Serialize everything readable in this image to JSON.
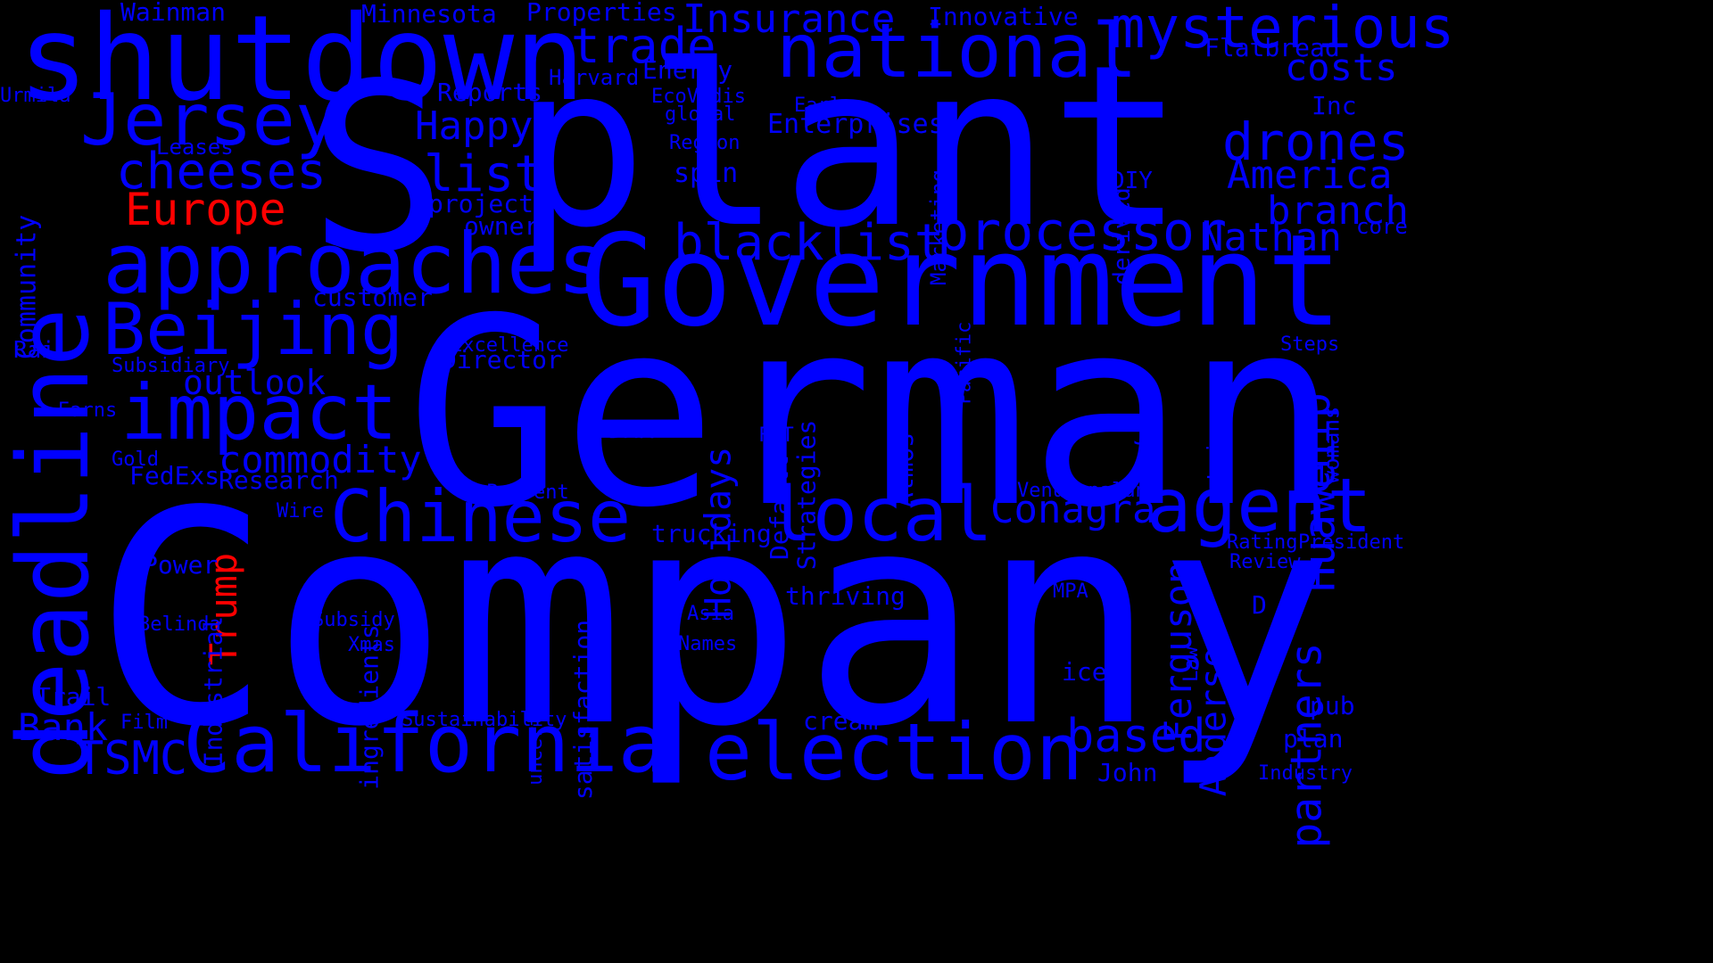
{
  "colors": {
    "background": "#000000",
    "primary": "#0000FF",
    "highlight": "#FF0000"
  },
  "words": [
    {
      "text": "Company",
      "orientation": "horizontal",
      "color": "primary"
    },
    {
      "text": "German",
      "orientation": "horizontal",
      "color": "primary"
    },
    {
      "text": "plant",
      "orientation": "horizontal",
      "color": "primary"
    },
    {
      "text": "S",
      "orientation": "horizontal",
      "color": "primary"
    },
    {
      "text": "Government",
      "orientation": "horizontal",
      "color": "primary"
    },
    {
      "text": "shutdown",
      "orientation": "horizontal",
      "color": "primary"
    },
    {
      "text": "deadline",
      "orientation": "vertical",
      "color": "primary"
    },
    {
      "text": "national",
      "orientation": "horizontal",
      "color": "primary"
    },
    {
      "text": "approaches",
      "orientation": "horizontal",
      "color": "primary"
    },
    {
      "text": "California",
      "orientation": "horizontal",
      "color": "primary"
    },
    {
      "text": "election",
      "orientation": "horizontal",
      "color": "primary"
    },
    {
      "text": "Chinese",
      "orientation": "horizontal",
      "color": "primary"
    },
    {
      "text": "impact",
      "orientation": "horizontal",
      "color": "primary"
    },
    {
      "text": "local",
      "orientation": "horizontal",
      "color": "primary"
    },
    {
      "text": "agent",
      "orientation": "horizontal",
      "color": "primary"
    },
    {
      "text": "Jersey",
      "orientation": "horizontal",
      "color": "primary"
    },
    {
      "text": "Beijing",
      "orientation": "horizontal",
      "color": "primary"
    },
    {
      "text": "mysterious",
      "orientation": "horizontal",
      "color": "primary"
    },
    {
      "text": "processor",
      "orientation": "horizontal",
      "color": "primary"
    },
    {
      "text": "blacklist",
      "orientation": "horizontal",
      "color": "primary"
    },
    {
      "text": "trade",
      "orientation": "horizontal",
      "color": "primary"
    },
    {
      "text": "drones",
      "orientation": "horizontal",
      "color": "primary"
    },
    {
      "text": "cheeses",
      "orientation": "horizontal",
      "color": "primary"
    },
    {
      "text": "list",
      "orientation": "horizontal",
      "color": "primary"
    },
    {
      "text": "partners",
      "orientation": "vertical",
      "color": "primary"
    },
    {
      "text": "Huawei",
      "orientation": "vertical",
      "color": "primary"
    },
    {
      "text": "chip",
      "orientation": "vertical",
      "color": "primary"
    },
    {
      "text": "based",
      "orientation": "horizontal",
      "color": "primary"
    },
    {
      "text": "Ferguson",
      "orientation": "vertical",
      "color": "primary"
    },
    {
      "text": "Anderson",
      "orientation": "vertical",
      "color": "primary"
    },
    {
      "text": "Conagra",
      "orientation": "horizontal",
      "color": "primary"
    },
    {
      "text": "TSMC",
      "orientation": "horizontal",
      "color": "primary"
    },
    {
      "text": "Insurance",
      "orientation": "horizontal",
      "color": "primary"
    },
    {
      "text": "Europe",
      "orientation": "horizontal",
      "color": "highlight"
    },
    {
      "text": "Trump",
      "orientation": "vertical",
      "color": "highlight"
    },
    {
      "text": "America",
      "orientation": "horizontal",
      "color": "primary"
    },
    {
      "text": "branch",
      "orientation": "horizontal",
      "color": "primary"
    },
    {
      "text": "Nathan",
      "orientation": "horizontal",
      "color": "primary"
    },
    {
      "text": "costs",
      "orientation": "horizontal",
      "color": "primary"
    },
    {
      "text": "outlook",
      "orientation": "horizontal",
      "color": "primary"
    },
    {
      "text": "commodity",
      "orientation": "horizontal",
      "color": "primary"
    },
    {
      "text": "Happy",
      "orientation": "horizontal",
      "color": "primary"
    },
    {
      "text": "Holidays",
      "orientation": "vertical",
      "color": "primary"
    },
    {
      "text": "Community",
      "orientation": "vertical",
      "color": "primary"
    },
    {
      "text": "Bank",
      "orientation": "horizontal",
      "color": "primary"
    },
    {
      "text": "Research",
      "orientation": "horizontal",
      "color": "primary"
    },
    {
      "text": "FedExs",
      "orientation": "horizontal",
      "color": "primary"
    },
    {
      "text": "Director",
      "orientation": "horizontal",
      "color": "primary"
    },
    {
      "text": "customer",
      "orientation": "horizontal",
      "color": "primary"
    },
    {
      "text": "project",
      "orientation": "horizontal",
      "color": "primary"
    },
    {
      "text": "owner",
      "orientation": "horizontal",
      "color": "primary"
    },
    {
      "text": "Reports",
      "orientation": "horizontal",
      "color": "primary"
    },
    {
      "text": "Energy",
      "orientation": "horizontal",
      "color": "primary"
    },
    {
      "text": "Enterprises",
      "orientation": "horizontal",
      "color": "primary"
    },
    {
      "text": "Innovative",
      "orientation": "horizontal",
      "color": "primary"
    },
    {
      "text": "Flatbread",
      "orientation": "horizontal",
      "color": "primary"
    },
    {
      "text": "Minnesota",
      "orientation": "horizontal",
      "color": "primary"
    },
    {
      "text": "Properties",
      "orientation": "horizontal",
      "color": "primary"
    },
    {
      "text": "Wainman",
      "orientation": "horizontal",
      "color": "primary"
    },
    {
      "text": "Harvard",
      "orientation": "horizontal",
      "color": "primary"
    },
    {
      "text": "EcoVadis",
      "orientation": "horizontal",
      "color": "primary"
    },
    {
      "text": "global",
      "orientation": "horizontal",
      "color": "primary"
    },
    {
      "text": "Region",
      "orientation": "horizontal",
      "color": "primary"
    },
    {
      "text": "spin",
      "orientation": "horizontal",
      "color": "primary"
    },
    {
      "text": "Early",
      "orientation": "horizontal",
      "color": "primary"
    },
    {
      "text": "Marketing",
      "orientation": "vertical",
      "color": "primary"
    },
    {
      "text": "derived",
      "orientation": "vertical",
      "color": "primary"
    },
    {
      "text": "DIY",
      "orientation": "horizontal",
      "color": "primary"
    },
    {
      "text": "Inc",
      "orientation": "horizontal",
      "color": "primary"
    },
    {
      "text": "core",
      "orientation": "horizontal",
      "color": "primary"
    },
    {
      "text": "Urmila",
      "orientation": "horizontal",
      "color": "primary"
    },
    {
      "text": "Leases",
      "orientation": "horizontal",
      "color": "primary"
    },
    {
      "text": "Rail",
      "orientation": "horizontal",
      "color": "primary"
    },
    {
      "text": "Subsidiary",
      "orientation": "horizontal",
      "color": "primary"
    },
    {
      "text": "Excellence",
      "orientation": "horizontal",
      "color": "primary"
    },
    {
      "text": "Earns",
      "orientation": "horizontal",
      "color": "primary"
    },
    {
      "text": "Gold",
      "orientation": "horizontal",
      "color": "primary"
    },
    {
      "text": "Shareholding",
      "orientation": "vertical",
      "color": "primary"
    },
    {
      "text": "Present",
      "orientation": "horizontal",
      "color": "primary"
    },
    {
      "text": "Wire",
      "orientation": "horizontal",
      "color": "primary"
    },
    {
      "text": "PDMR",
      "orientation": "horizontal",
      "color": "primary"
    },
    {
      "text": "FPT",
      "orientation": "horizontal",
      "color": "primary"
    },
    {
      "text": "Default",
      "orientation": "vertical",
      "color": "primary"
    },
    {
      "text": "Strategies",
      "orientation": "vertical",
      "color": "primary"
    },
    {
      "text": "Atmos",
      "orientation": "vertical",
      "color": "primary"
    },
    {
      "text": "Pacific",
      "orientation": "vertical",
      "color": "primary"
    },
    {
      "text": "Steps",
      "orientation": "horizontal",
      "color": "primary"
    },
    {
      "text": "womans",
      "orientation": "vertical",
      "color": "primary"
    },
    {
      "text": "Lui",
      "orientation": "vertical",
      "color": "primary"
    },
    {
      "text": "J",
      "orientation": "horizontal",
      "color": "primary"
    },
    {
      "text": "Venugopalan",
      "orientation": "horizontal",
      "color": "primary"
    },
    {
      "text": "Rating",
      "orientation": "horizontal",
      "color": "primary"
    },
    {
      "text": "President",
      "orientation": "horizontal",
      "color": "primary"
    },
    {
      "text": "Review",
      "orientation": "horizontal",
      "color": "primary"
    },
    {
      "text": "trucking",
      "orientation": "horizontal",
      "color": "primary"
    },
    {
      "text": "Power",
      "orientation": "horizontal",
      "color": "primary"
    },
    {
      "text": "Industrial",
      "orientation": "vertical",
      "color": "primary"
    },
    {
      "text": "Belinda",
      "orientation": "horizontal",
      "color": "primary"
    },
    {
      "text": "Subsidy",
      "orientation": "horizontal",
      "color": "primary"
    },
    {
      "text": "Xmas",
      "orientation": "horizontal",
      "color": "primary"
    },
    {
      "text": "ingredients",
      "orientation": "vertical",
      "color": "primary"
    },
    {
      "text": "uncertainty",
      "orientation": "vertical",
      "color": "primary"
    },
    {
      "text": "satisfaction",
      "orientation": "vertical",
      "color": "primary"
    },
    {
      "text": "thriving",
      "orientation": "horizontal",
      "color": "primary"
    },
    {
      "text": "Asia",
      "orientation": "horizontal",
      "color": "primary"
    },
    {
      "text": "Names",
      "orientation": "horizontal",
      "color": "primary"
    },
    {
      "text": "MPA",
      "orientation": "horizontal",
      "color": "primary"
    },
    {
      "text": "D",
      "orientation": "horizontal",
      "color": "primary"
    },
    {
      "text": "ice",
      "orientation": "horizontal",
      "color": "primary"
    },
    {
      "text": "Law",
      "orientation": "vertical",
      "color": "primary"
    },
    {
      "text": "pub",
      "orientation": "horizontal",
      "color": "primary"
    },
    {
      "text": "plan",
      "orientation": "horizontal",
      "color": "primary"
    },
    {
      "text": "Industry",
      "orientation": "horizontal",
      "color": "primary"
    },
    {
      "text": "John",
      "orientation": "horizontal",
      "color": "primary"
    },
    {
      "text": "cream",
      "orientation": "horizontal",
      "color": "primary"
    },
    {
      "text": "Sustainability",
      "orientation": "horizontal",
      "color": "primary"
    },
    {
      "text": "Trail",
      "orientation": "horizontal",
      "color": "primary"
    },
    {
      "text": "Film",
      "orientation": "horizontal",
      "color": "primary"
    }
  ]
}
